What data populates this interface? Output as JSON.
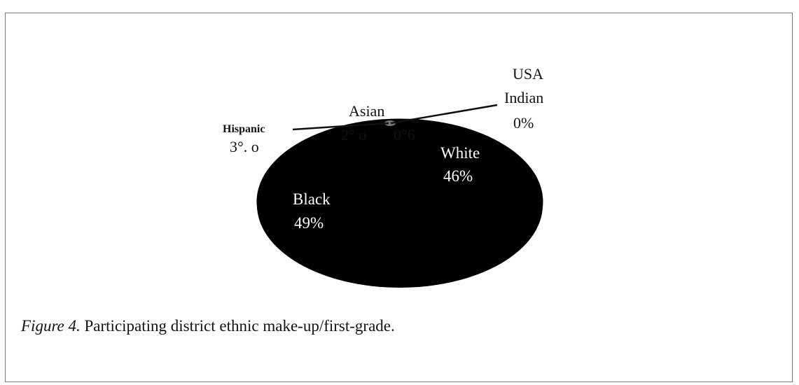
{
  "caption": {
    "figure_label": "Figure 4.",
    "text": "Participating district ethnic make-up/first-grade."
  },
  "colors": {
    "pie_fill": "#000000",
    "tiny_slice": "#777777",
    "label_light": "#ffffff",
    "label_dark": "#111111"
  },
  "chart_data": {
    "type": "pie",
    "three_d": true,
    "slices": [
      {
        "name": "Black",
        "value": 49,
        "label_name": "Black",
        "label_value": "49%"
      },
      {
        "name": "White",
        "value": 46,
        "label_name": "White",
        "label_value": "46%"
      },
      {
        "name": "Hispanic",
        "value": 3,
        "label_name": "Hispanic",
        "label_value": "3% o"
      },
      {
        "name": "Asian",
        "value": 2,
        "label_name": "Asian",
        "label_value": "2% o"
      },
      {
        "name": "USA Indian",
        "value": 0,
        "label_name": "USA Indian",
        "label_value": "0%"
      }
    ],
    "extra_labels": [
      "0%"
    ],
    "label_lines": {
      "usa": "USA",
      "indian": "Indian",
      "asian_pct": "2° o",
      "asian_zero": "0°6",
      "hispanic_pct": "3°. o"
    }
  }
}
